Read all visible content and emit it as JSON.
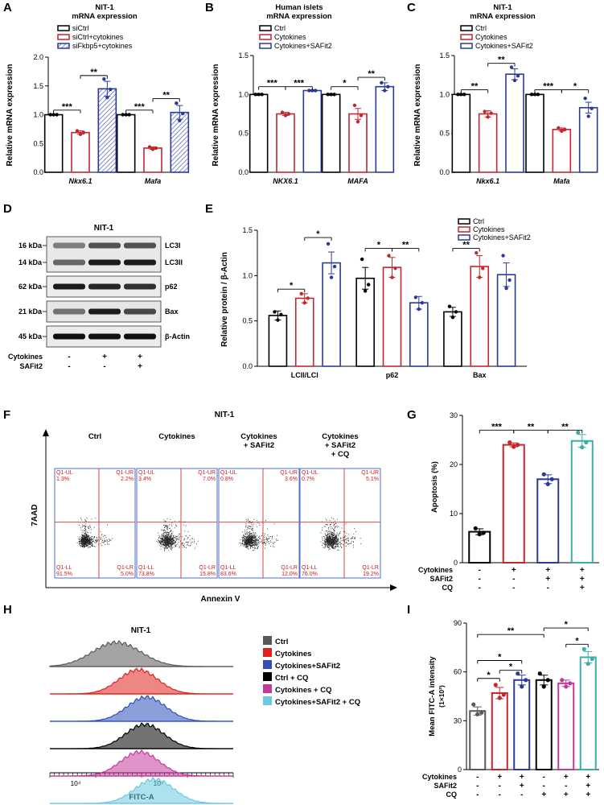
{
  "colors": {
    "black": "#000000",
    "red": "#c4262e",
    "blue": "#2b3a9a",
    "teal": "#3aaea8",
    "magenta": "#c4379a",
    "darkgray": "#595959",
    "fkbp": "#4a5ab0"
  },
  "panel_letters": {
    "A": "A",
    "B": "B",
    "C": "C",
    "D": "D",
    "E": "E",
    "F": "F",
    "G": "G",
    "H": "H",
    "I": "I"
  },
  "chart_data": [
    {
      "id": "A",
      "type": "bar",
      "title": "NIT-1",
      "subtitle": "mRNA expression",
      "ylabel": "Relative mRNA expression",
      "ylim": [
        0,
        2.0
      ],
      "yticks": [
        "0.0",
        "0.5",
        "1.0",
        "1.5",
        "2.0"
      ],
      "categories": [
        "Nkx6.1",
        "Mafa"
      ],
      "series": [
        {
          "name": "siCtrl",
          "color": "#000000",
          "values": [
            1.0,
            1.0
          ],
          "err": [
            0.01,
            0.01
          ],
          "points": [
            [
              1.0,
              1.0,
              1.0
            ],
            [
              1.0,
              1.0,
              1.0
            ]
          ]
        },
        {
          "name": "siCtrl+cytokines",
          "color": "#c4262e",
          "values": [
            0.69,
            0.42
          ],
          "err": [
            0.03,
            0.02
          ],
          "points": [
            [
              0.72,
              0.66,
              0.69
            ],
            [
              0.44,
              0.4,
              0.42
            ]
          ]
        },
        {
          "name": "siFkbp5+cytokines",
          "color": "#2b3a9a",
          "hatched": true,
          "values": [
            1.45,
            1.04
          ],
          "err": [
            0.13,
            0.12
          ],
          "points": [
            [
              1.62,
              1.3,
              1.44
            ],
            [
              1.2,
              0.9,
              1.02
            ]
          ]
        }
      ],
      "sig": [
        {
          "text": "***"
        },
        {
          "text": "**"
        },
        {
          "text": "***"
        },
        {
          "text": "**"
        }
      ]
    },
    {
      "id": "B",
      "type": "bar",
      "title": "Human islets",
      "subtitle": "mRNA expression",
      "ylabel": "Relative mRNA expression",
      "ylim": [
        0,
        1.5
      ],
      "yticks": [
        "0.0",
        "0.5",
        "1.0",
        "1.5"
      ],
      "categories": [
        "NKX6.1",
        "MAFA"
      ],
      "series": [
        {
          "name": "Ctrl",
          "color": "#000000",
          "values": [
            1.0,
            1.0
          ],
          "err": [
            0.01,
            0.01
          ],
          "points": [
            [
              1.0,
              1.0,
              1.0
            ],
            [
              1.0,
              1.0,
              1.0
            ]
          ]
        },
        {
          "name": "Cytokines",
          "color": "#c4262e",
          "values": [
            0.75,
            0.75
          ],
          "err": [
            0.02,
            0.07
          ],
          "points": [
            [
              0.77,
              0.73,
              0.75
            ],
            [
              0.86,
              0.65,
              0.73
            ]
          ]
        },
        {
          "name": "Cytokines+SAFit2",
          "color": "#2b3a9a",
          "values": [
            1.05,
            1.1
          ],
          "err": [
            0.01,
            0.05
          ],
          "points": [
            [
              1.05,
              1.05,
              1.05
            ],
            [
              1.15,
              1.05,
              1.1
            ]
          ]
        }
      ],
      "sig": [
        {
          "text": "***"
        },
        {
          "text": "***"
        },
        {
          "text": "*"
        },
        {
          "text": "**"
        }
      ]
    },
    {
      "id": "C",
      "type": "bar",
      "title": "NIT-1",
      "subtitle": "mRNA expression",
      "ylabel": "Relative mRNA expression",
      "ylim": [
        0,
        1.5
      ],
      "yticks": [
        "0.0",
        "0.5",
        "1.0",
        "1.5"
      ],
      "categories": [
        "Nkx6.1",
        "Mafa"
      ],
      "series": [
        {
          "name": "Ctrl",
          "color": "#000000",
          "values": [
            1.0,
            1.0
          ],
          "err": [
            0.01,
            0.01
          ],
          "points": [
            [
              1.0,
              1.0,
              1.0
            ],
            [
              1.0,
              1.0,
              1.0
            ]
          ]
        },
        {
          "name": "Cytokines",
          "color": "#c4262e",
          "values": [
            0.75,
            0.55
          ],
          "err": [
            0.04,
            0.02
          ],
          "points": [
            [
              0.78,
              0.71,
              0.76
            ],
            [
              0.57,
              0.53,
              0.55
            ]
          ]
        },
        {
          "name": "Cytokines+SAFit2",
          "color": "#2b3a9a",
          "values": [
            1.26,
            0.83
          ],
          "err": [
            0.07,
            0.07
          ],
          "points": [
            [
              1.35,
              1.18,
              1.24
            ],
            [
              0.95,
              0.72,
              0.82
            ]
          ]
        }
      ],
      "sig": [
        {
          "text": "**"
        },
        {
          "text": "**"
        },
        {
          "text": "***"
        },
        {
          "text": "*"
        }
      ]
    },
    {
      "id": "E",
      "type": "bar",
      "ylabel": "Relative protein / β-Actin",
      "ylim": [
        0,
        1.5
      ],
      "yticks": [
        "0.0",
        "0.5",
        "1.0",
        "1.5"
      ],
      "categories": [
        "LCII/LCI",
        "p62",
        "Bax"
      ],
      "series": [
        {
          "name": "Ctrl",
          "color": "#000000",
          "values": [
            0.56,
            0.97,
            0.6
          ],
          "err": [
            0.05,
            0.12,
            0.05
          ],
          "points": [
            [
              0.6,
              0.51,
              0.57
            ],
            [
              1.18,
              0.83,
              0.9
            ],
            [
              0.66,
              0.54,
              0.6
            ]
          ]
        },
        {
          "name": "Cytokines",
          "color": "#c4262e",
          "values": [
            0.75,
            1.09,
            1.1
          ],
          "err": [
            0.05,
            0.11,
            0.12
          ],
          "points": [
            [
              0.8,
              0.7,
              0.75
            ],
            [
              1.22,
              0.98,
              1.08
            ],
            [
              1.25,
              0.98,
              1.08
            ]
          ]
        },
        {
          "name": "Cytokines+SAFit2",
          "color": "#2b3a9a",
          "values": [
            1.14,
            0.7,
            1.01
          ],
          "err": [
            0.12,
            0.07,
            0.13
          ],
          "points": [
            [
              1.35,
              0.98,
              1.1
            ],
            [
              0.76,
              0.63,
              0.7
            ],
            [
              1.22,
              0.86,
              0.95
            ]
          ]
        }
      ],
      "sig": [
        {
          "text": "*"
        },
        {
          "text": "*"
        },
        {
          "text": "*"
        },
        {
          "text": "**"
        },
        {
          "text": "**"
        }
      ]
    },
    {
      "id": "G",
      "type": "bar",
      "ylabel": "Apoptosis (%)",
      "ylim": [
        0,
        30
      ],
      "yticks": [
        "0",
        "10",
        "20",
        "30"
      ],
      "categories": [
        "Ctrl",
        "Cytokines",
        "Cytokines+SAFit2",
        "Cytokines+SAFit2+CQ"
      ],
      "values": [
        6.3,
        24.0,
        17.0,
        24.8
      ],
      "err": [
        0.6,
        0.4,
        0.9,
        1.3
      ],
      "colors": [
        "#000000",
        "#c4262e",
        "#2b3a9a",
        "#3aaea8"
      ],
      "points": [
        [
          7.0,
          5.8,
          6.1
        ],
        [
          24.5,
          23.6,
          24.0
        ],
        [
          18.0,
          16.0,
          17.0
        ],
        [
          26.5,
          23.5,
          24.5
        ]
      ],
      "sig": [
        {
          "text": "***"
        },
        {
          "text": "**"
        },
        {
          "text": "**"
        }
      ],
      "conditions": {
        "labels": [
          "Cytokines",
          "SAFit2",
          "CQ"
        ],
        "rows": [
          [
            "-",
            "+",
            "+",
            "+"
          ],
          [
            "-",
            "-",
            "+",
            "+"
          ],
          [
            "-",
            "-",
            "-",
            "+"
          ]
        ]
      }
    },
    {
      "id": "I",
      "type": "bar",
      "ylabel": "Mean FITC-A intensity",
      "ylabel2": "(1×10³)",
      "ylim": [
        0,
        90
      ],
      "yticks": [
        "0",
        "30",
        "60",
        "90"
      ],
      "categories": [
        "Ctrl",
        "Cytokines",
        "Cytokines+SAFit2",
        "Ctrl+CQ",
        "Cytokines+CQ",
        "Cytokines+SAFit2+CQ"
      ],
      "values": [
        36,
        47,
        55,
        55,
        53,
        69
      ],
      "err": [
        2.5,
        3.5,
        3.0,
        3.0,
        2.0,
        3.5
      ],
      "colors": [
        "#595959",
        "#c4262e",
        "#2b3a9a",
        "#000000",
        "#c4379a",
        "#3aaea8"
      ],
      "points": [
        [
          40,
          34,
          35
        ],
        [
          52,
          44,
          46
        ],
        [
          59,
          51,
          55
        ],
        [
          59,
          51,
          55
        ],
        [
          55,
          51,
          53
        ],
        [
          74,
          65,
          68
        ]
      ],
      "sig": [
        {
          "text": "**"
        },
        {
          "text": "*"
        },
        {
          "text": "*"
        },
        {
          "text": "*"
        },
        {
          "text": "*"
        },
        {
          "text": "*"
        }
      ],
      "conditions": {
        "labels": [
          "Cytokines",
          "SAFit2",
          "CQ"
        ],
        "rows": [
          [
            "-",
            "+",
            "+",
            "-",
            "+",
            "+"
          ],
          [
            "-",
            "-",
            "+",
            "-",
            "-",
            "+"
          ],
          [
            "-",
            "-",
            "-",
            "+",
            "+",
            "+"
          ]
        ]
      }
    }
  ],
  "panel_D": {
    "title": "NIT-1",
    "kda": [
      "16 kDa",
      "14 kDa",
      "62 kDa",
      "21 kDa",
      "45 kDa"
    ],
    "bands": [
      "LC3I",
      "LC3II",
      "p62",
      "Bax",
      "β-Actin"
    ],
    "conditions": {
      "labels": [
        "Cytokines",
        "SAFit2"
      ],
      "rows": [
        [
          "-",
          "+",
          "+"
        ],
        [
          "-",
          "-",
          "+"
        ]
      ]
    }
  },
  "panel_F": {
    "title": "NIT-1",
    "xlabel": "Annexin V",
    "ylabel": "7AAD",
    "columns": [
      "Ctrl",
      "Cytokines",
      "Cytokines\n+ SAFit2",
      "Cytokines\n+ SAFit2\n+ CQ"
    ],
    "quadrants": [
      {
        "ul": "Q1-UL",
        "ulv": "1.3%",
        "ur": "Q1-UR",
        "urv": "2.2%",
        "ll": "Q1-LL",
        "llv": "91.5%",
        "lr": "Q1-LR",
        "lrv": "5.0%"
      },
      {
        "ul": "Q1-UL",
        "ulv": "3.4%",
        "ur": "Q1-UR",
        "urv": "7.0%",
        "ll": "Q1-LL",
        "llv": "73.8%",
        "lr": "Q1-LR",
        "lrv": "15.8%"
      },
      {
        "ul": "Q1-UL",
        "ulv": "0.8%",
        "ur": "Q1-UR",
        "urv": "3.6%",
        "ll": "Q1-LL",
        "llv": "83.6%",
        "lr": "Q1-LR",
        "lrv": "12.0%"
      },
      {
        "ul": "Q1-UL",
        "ulv": "0.7%",
        "ur": "Q1-UR",
        "urv": "5.1%",
        "ll": "Q1-LL",
        "llv": "76.0%",
        "lr": "Q1-LR",
        "lrv": "19.2%"
      }
    ]
  },
  "panel_H": {
    "title": "NIT-1",
    "xlabel": "FITC-A",
    "xticks": [
      "10⁴",
      "10⁵"
    ],
    "legend": [
      {
        "label": "Ctrl",
        "color": "#595959"
      },
      {
        "label": "Cytokines",
        "color": "#e0221e"
      },
      {
        "label": "Cytokines+SAFit2",
        "color": "#3050b8"
      },
      {
        "label": "Ctrl + CQ",
        "color": "#000000"
      },
      {
        "label": "Cytokines + CQ",
        "color": "#c43a9a"
      },
      {
        "label": "Cytokines+SAFit2 + CQ",
        "color": "#6cc8e0"
      }
    ]
  }
}
